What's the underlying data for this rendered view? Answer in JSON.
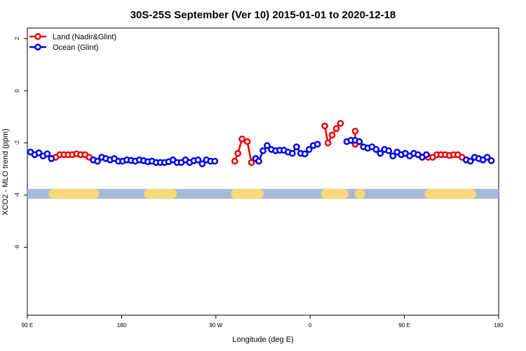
{
  "chart_data": {
    "type": "line",
    "title": "30S-25S September (Ver 10)   2015-01-01 to 2020-12-18",
    "xlabel": "Longitude (deg E)",
    "ylabel": "XCO2 - MLO trend (ppm)",
    "xlim": [
      90,
      540
    ],
    "ylim": [
      -8.6,
      2.4
    ],
    "x_ticks": [
      {
        "value": 90,
        "label": "90 E"
      },
      {
        "value": 180,
        "label": "180"
      },
      {
        "value": 270,
        "label": "90 W"
      },
      {
        "value": 360,
        "label": "0"
      },
      {
        "value": 450,
        "label": "90 E"
      },
      {
        "value": 540,
        "label": "180"
      }
    ],
    "y_ticks": [
      {
        "value": 2,
        "label": "2"
      },
      {
        "value": 0,
        "label": "0"
      },
      {
        "value": -2,
        "label": "-2"
      },
      {
        "value": -4,
        "label": "-4"
      },
      {
        "value": -6,
        "label": "-6"
      }
    ],
    "legend_position": "top-left",
    "land_band": {
      "y": -3.95,
      "ocean_color": "#a5b9d6",
      "land_color": "#f8d878",
      "land_ranges": [
        [
          115,
          154
        ],
        [
          289,
          311
        ],
        [
          375,
          392
        ],
        [
          206,
          228
        ],
        [
          407,
          408
        ],
        [
          474,
          514
        ]
      ]
    },
    "series": [
      {
        "name": "Land (Nadir&Glint)",
        "color": "#ee0000",
        "segments": [
          [
            [
              113,
              -2.6
            ],
            [
              117,
              -2.55
            ],
            [
              121,
              -2.45
            ],
            [
              125,
              -2.45
            ],
            [
              129,
              -2.45
            ],
            [
              133,
              -2.45
            ],
            [
              137,
              -2.42
            ],
            [
              141,
              -2.45
            ],
            [
              145,
              -2.45
            ],
            [
              149,
              -2.55
            ],
            [
              153,
              -2.65
            ]
          ],
          [
            [
              288,
              -2.7
            ],
            [
              291,
              -2.4
            ],
            [
              295,
              -1.85
            ],
            [
              300,
              -1.95
            ],
            [
              304,
              -2.75
            ],
            [
              308,
              -2.6
            ]
          ],
          [
            [
              374,
              -1.35
            ],
            [
              377,
              -2.0
            ],
            [
              381,
              -1.7
            ],
            [
              385,
              -1.45
            ],
            [
              389,
              -1.25
            ]
          ],
          [
            [
              403,
              -1.55
            ],
            [
              403,
              -2.05
            ]
          ],
          [
            [
              473,
              -2.55
            ],
            [
              477,
              -2.55
            ],
            [
              481,
              -2.45
            ],
            [
              485,
              -2.45
            ],
            [
              489,
              -2.45
            ],
            [
              493,
              -2.48
            ],
            [
              497,
              -2.45
            ],
            [
              501,
              -2.45
            ],
            [
              505,
              -2.55
            ],
            [
              509,
              -2.65
            ]
          ]
        ]
      },
      {
        "name": "Ocean (Glint)",
        "color": "#0000ee",
        "segments": [
          [
            [
              93,
              -2.35
            ],
            [
              97,
              -2.45
            ],
            [
              101,
              -2.38
            ],
            [
              105,
              -2.5
            ],
            [
              109,
              -2.42
            ],
            [
              113,
              -2.6
            ]
          ],
          [
            [
              153,
              -2.65
            ],
            [
              157,
              -2.7
            ],
            [
              161,
              -2.55
            ],
            [
              165,
              -2.6
            ],
            [
              169,
              -2.65
            ],
            [
              173,
              -2.6
            ],
            [
              177,
              -2.7
            ],
            [
              181,
              -2.7
            ],
            [
              185,
              -2.65
            ],
            [
              189,
              -2.67
            ],
            [
              193,
              -2.7
            ],
            [
              197,
              -2.65
            ],
            [
              201,
              -2.68
            ],
            [
              205,
              -2.72
            ],
            [
              209,
              -2.7
            ],
            [
              213,
              -2.75
            ],
            [
              217,
              -2.75
            ],
            [
              221,
              -2.75
            ],
            [
              225,
              -2.72
            ],
            [
              229,
              -2.65
            ],
            [
              233,
              -2.75
            ],
            [
              237,
              -2.75
            ],
            [
              241,
              -2.65
            ],
            [
              245,
              -2.75
            ],
            [
              249,
              -2.68
            ],
            [
              253,
              -2.65
            ],
            [
              257,
              -2.8
            ],
            [
              261,
              -2.65
            ],
            [
              265,
              -2.7
            ],
            [
              269,
              -2.7
            ]
          ],
          [
            [
              308,
              -2.6
            ],
            [
              311,
              -2.7
            ],
            [
              315,
              -2.3
            ],
            [
              319,
              -2.1
            ],
            [
              323,
              -2.25
            ],
            [
              327,
              -2.3
            ],
            [
              331,
              -2.28
            ],
            [
              335,
              -2.28
            ],
            [
              339,
              -2.35
            ],
            [
              343,
              -2.4
            ],
            [
              347,
              -2.15
            ],
            [
              351,
              -2.4
            ],
            [
              355,
              -2.42
            ],
            [
              359,
              -2.25
            ],
            [
              363,
              -2.1
            ],
            [
              367,
              -2.05
            ]
          ],
          [
            [
              395,
              -1.95
            ],
            [
              399,
              -1.9
            ],
            [
              403,
              -1.9
            ],
            [
              407,
              -1.95
            ],
            [
              411,
              -2.15
            ],
            [
              415,
              -2.2
            ],
            [
              419,
              -2.15
            ],
            [
              423,
              -2.25
            ],
            [
              427,
              -2.4
            ],
            [
              431,
              -2.25
            ],
            [
              435,
              -2.3
            ],
            [
              439,
              -2.5
            ],
            [
              443,
              -2.35
            ],
            [
              447,
              -2.45
            ],
            [
              451,
              -2.4
            ],
            [
              455,
              -2.5
            ],
            [
              459,
              -2.4
            ],
            [
              463,
              -2.45
            ],
            [
              467,
              -2.55
            ],
            [
              471,
              -2.45
            ]
          ],
          [
            [
              509,
              -2.65
            ],
            [
              513,
              -2.7
            ],
            [
              517,
              -2.55
            ],
            [
              521,
              -2.6
            ],
            [
              525,
              -2.65
            ],
            [
              529,
              -2.55
            ],
            [
              533,
              -2.68
            ]
          ]
        ]
      }
    ]
  }
}
